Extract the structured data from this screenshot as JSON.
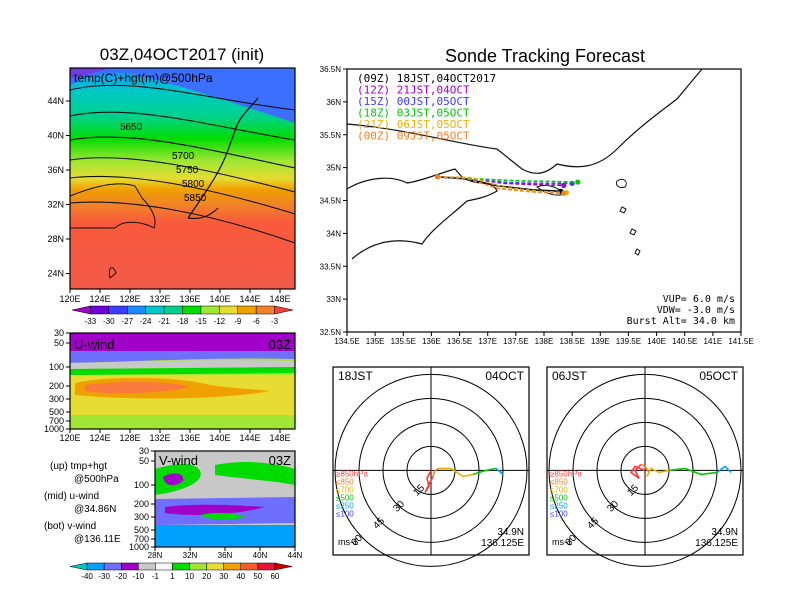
{
  "map_panel": {
    "title": "03Z,04OCT2017 (init)",
    "label": "temp(C)+hgt(m)@500hPa",
    "lon_ticks": [
      "120E",
      "124E",
      "128E",
      "132E",
      "136E",
      "140E",
      "144E",
      "148E"
    ],
    "lat_ticks": [
      "44N",
      "40N",
      "36N",
      "32N",
      "28N",
      "24N"
    ],
    "contour_labels": [
      "5650",
      "5700",
      "5750",
      "5800",
      "5850"
    ],
    "colorbar_labels": [
      "-33",
      "-30",
      "-27",
      "-24",
      "-21",
      "-18",
      "-15",
      "-12",
      "-9",
      "-6",
      "-3"
    ],
    "colorbar_colors": [
      "#a000c8",
      "#6e00dc",
      "#3c3cff",
      "#1e8cff",
      "#00c8c8",
      "#00d28c",
      "#00dc00",
      "#a0e632",
      "#e6dc32",
      "#f0a000",
      "#f08228",
      "#fa3c3c"
    ]
  },
  "uwind_panel": {
    "title": "U-wind",
    "time": "03Z",
    "p_ticks": [
      "30",
      "50",
      "100",
      "200",
      "300",
      "500",
      "700",
      "1000"
    ],
    "lon_ticks": [
      "120E",
      "124E",
      "128E",
      "132E",
      "136E",
      "140E",
      "144E",
      "148E"
    ]
  },
  "vwind_panel": {
    "title": "V-wind",
    "time": "03Z",
    "p_ticks": [
      "30",
      "50",
      "100",
      "200",
      "300",
      "500",
      "700",
      "1000"
    ],
    "lat_ticks": [
      "28N",
      "32N",
      "36N",
      "40N",
      "44N"
    ]
  },
  "legend_text": {
    "up_1": "(up) tmp+hgt",
    "up_2": "@500hPa",
    "mid_1": "(mid) u-wind",
    "mid_2": "@34.86N",
    "bot_1": "(bot) v-wind",
    "bot_2": "@136.11E"
  },
  "wind_colorbar": {
    "labels": [
      "-40",
      "-30",
      "-20",
      "-10",
      "-1",
      "1",
      "10",
      "20",
      "30",
      "40",
      "50",
      "60"
    ],
    "colors": [
      "#00c8c8",
      "#00a0ff",
      "#6e6eff",
      "#a000c8",
      "#c8c8c8",
      "#fafafa",
      "#00dc00",
      "#a0e632",
      "#e6dc32",
      "#f0a000",
      "#fa5a28",
      "#e6143c",
      "#c80000"
    ]
  },
  "track_panel": {
    "title": "Sonde Tracking Forecast",
    "lon_ticks": [
      "134.5E",
      "135E",
      "135.5E",
      "136E",
      "136.5E",
      "137E",
      "137.5E",
      "138E",
      "138.5E",
      "139E",
      "139.5E",
      "140E",
      "140.5E",
      "141E",
      "141.5E"
    ],
    "lat_ticks": [
      "36.5N",
      "36N",
      "35.5N",
      "35N",
      "34.5N",
      "34N",
      "33.5N",
      "33N",
      "32.5N"
    ],
    "legend": [
      {
        "text": "(09Z)  18JST,04OCT2017",
        "color": "#000000"
      },
      {
        "text": "(12Z)  21JST,04OCT",
        "color": "#a000c8"
      },
      {
        "text": "(15Z)  00JST,05OCT",
        "color": "#3c3cff"
      },
      {
        "text": "(18Z)  03JST,05OCT",
        "color": "#00c800"
      },
      {
        "text": "(21Z)  06JST,05OCT",
        "color": "#e6b400"
      },
      {
        "text": "(00Z)  09JST,05OCT",
        "color": "#f08228"
      }
    ],
    "info": [
      "VUP=  6.0  m/s",
      "VDW= -3.0  m/s",
      "Burst Alt=  34.0  km"
    ]
  },
  "hodo_left": {
    "time": "18JST",
    "date": "04OCT",
    "lat": "34.9N",
    "lon": "136.125E",
    "unit": "ms-1",
    "rings": [
      "15",
      "30",
      "45",
      "60"
    ],
    "levels": [
      "≥850hPa",
      "≤850",
      "≤700",
      "≤500",
      "≤250",
      "≤100"
    ]
  },
  "hodo_right": {
    "time": "06JST",
    "date": "05OCT",
    "lat": "34.9N",
    "lon": "136.125E",
    "unit": "ms-1",
    "rings": [
      "15",
      "30",
      "45",
      "60"
    ],
    "levels": [
      "≥850hPa",
      "≤850",
      "≤700",
      "≤500",
      "≤250",
      "≤100"
    ]
  },
  "chart_data": [
    {
      "type": "heatmap",
      "title": "03Z,04OCT2017 (init)",
      "label": "temp(C)+hgt(m)@500hPa",
      "x_range": [
        120,
        150
      ],
      "y_range": [
        22,
        47
      ],
      "contours": [
        5650,
        5700,
        5750,
        5800,
        5850
      ],
      "levels": [
        -33,
        -30,
        -27,
        -24,
        -21,
        -18,
        -15,
        -12,
        -9,
        -6,
        -3
      ]
    },
    {
      "type": "heatmap",
      "title": "U-wind",
      "x_range": [
        120,
        150
      ],
      "y_range": [
        1000,
        30
      ]
    },
    {
      "type": "heatmap",
      "title": "V-wind",
      "x_range": [
        28,
        44
      ],
      "y_range": [
        1000,
        30
      ]
    },
    {
      "type": "line",
      "title": "Sonde Tracking Forecast",
      "x_range": [
        134.5,
        141.5
      ],
      "y_range": [
        32.5,
        36.5
      ],
      "series": [
        {
          "name": "(09Z)  18JST,04OCT2017",
          "color": "#000000",
          "points": [
            [
              136.11,
              34.86
            ],
            [
              136.6,
              34.83
            ],
            [
              137.2,
              34.72
            ],
            [
              137.8,
              34.66
            ],
            [
              138.3,
              34.64
            ]
          ]
        },
        {
          "name": "(12Z)  21JST,04OCT",
          "color": "#a000c8",
          "points": [
            [
              136.11,
              34.86
            ],
            [
              136.7,
              34.83
            ],
            [
              137.3,
              34.76
            ],
            [
              137.9,
              34.74
            ],
            [
              138.35,
              34.73
            ]
          ]
        },
        {
          "name": "(15Z)  00JST,05OCT",
          "color": "#3c3cff",
          "points": [
            [
              136.11,
              34.86
            ],
            [
              136.7,
              34.82
            ],
            [
              137.4,
              34.77
            ],
            [
              138.0,
              34.76
            ],
            [
              138.5,
              34.76
            ]
          ]
        },
        {
          "name": "(18Z)  03JST,05OCT",
          "color": "#00c800",
          "points": [
            [
              136.11,
              34.86
            ],
            [
              136.8,
              34.83
            ],
            [
              137.5,
              34.8
            ],
            [
              138.1,
              34.79
            ],
            [
              138.6,
              34.78
            ]
          ]
        },
        {
          "name": "(21Z)  06JST,05OCT",
          "color": "#e6b400",
          "points": [
            [
              136.11,
              34.86
            ],
            [
              136.7,
              34.85
            ],
            [
              137.3,
              34.7
            ],
            [
              137.9,
              34.64
            ],
            [
              138.4,
              34.62
            ]
          ]
        },
        {
          "name": "(00Z)  09JST,05OCT",
          "color": "#f08228",
          "points": [
            [
              136.11,
              34.86
            ],
            [
              136.6,
              34.84
            ],
            [
              137.2,
              34.68
            ],
            [
              137.8,
              34.63
            ],
            [
              138.35,
              34.61
            ]
          ]
        }
      ]
    }
  ]
}
